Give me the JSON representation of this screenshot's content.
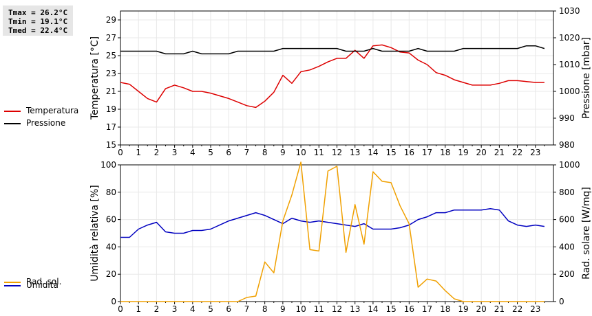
{
  "stats": {
    "tmax": "Tmax = 26.2°C",
    "tmin": "Tmin = 19.1°C",
    "tmed": "Tmed = 22.4°C"
  },
  "colors": {
    "temperatura": "#dd0000",
    "pressione": "#000000",
    "umidita": "#0000c0",
    "radsol": "#f0a000",
    "grid": "#e8e8e8"
  },
  "chart_data": [
    {
      "type": "line",
      "xlabel": "",
      "ylabel": "Temperatura [°C]",
      "y2label": "Pressione [mbar]",
      "xlim": [
        0,
        24
      ],
      "ylim": [
        15,
        30
      ],
      "y2lim": [
        980,
        1030
      ],
      "xticks": [
        "0",
        "1",
        "2",
        "3",
        "4",
        "5",
        "6",
        "7",
        "8",
        "9",
        "10",
        "11",
        "12",
        "13",
        "14",
        "15",
        "16",
        "17",
        "18",
        "19",
        "20",
        "21",
        "22",
        "23"
      ],
      "yticks": [
        "15",
        "17",
        "19",
        "21",
        "23",
        "25",
        "27",
        "29"
      ],
      "y2ticks": [
        "980",
        "990",
        "1000",
        "1010",
        "1020",
        "1030"
      ],
      "grid": true,
      "series": [
        {
          "name": "Temperatura",
          "axis": "left",
          "x": [
            0,
            0.5,
            1,
            1.5,
            2,
            2.5,
            3,
            3.5,
            4,
            4.5,
            5,
            5.5,
            6,
            6.5,
            7,
            7.5,
            8,
            8.5,
            9,
            9.5,
            10,
            10.5,
            11,
            11.5,
            12,
            12.5,
            13,
            13.5,
            14,
            14.5,
            15,
            15.5,
            16,
            16.5,
            17,
            17.5,
            18,
            18.5,
            19,
            19.5,
            20,
            20.5,
            21,
            21.5,
            22,
            22.5,
            23,
            23.5
          ],
          "values": [
            22,
            21.8,
            21,
            20.2,
            19.8,
            21.3,
            21.7,
            21.4,
            21,
            21,
            20.8,
            20.5,
            20.2,
            19.8,
            19.4,
            19.2,
            19.9,
            20.9,
            22.8,
            21.9,
            23.2,
            23.4,
            23.8,
            24.3,
            24.7,
            24.7,
            25.6,
            24.7,
            26.1,
            26.2,
            25.9,
            25.4,
            25.3,
            24.5,
            24,
            23.1,
            22.8,
            22.3,
            22,
            21.7,
            21.7,
            21.7,
            21.9,
            22.2,
            22.2,
            22.1,
            22,
            22
          ]
        },
        {
          "name": "Pressione",
          "axis": "right",
          "x": [
            0,
            0.5,
            1,
            1.5,
            2,
            2.5,
            3,
            3.5,
            4,
            4.5,
            5,
            5.5,
            6,
            6.5,
            7,
            7.5,
            8,
            8.5,
            9,
            9.5,
            10,
            10.5,
            11,
            11.5,
            12,
            12.5,
            13,
            13.5,
            14,
            14.5,
            15,
            15.5,
            16,
            16.5,
            17,
            17.5,
            18,
            18.5,
            19,
            19.5,
            20,
            20.5,
            21,
            21.5,
            22,
            22.5,
            23,
            23.5
          ],
          "values": [
            1015,
            1015,
            1015,
            1015,
            1015,
            1014,
            1014,
            1014,
            1015,
            1014,
            1014,
            1014,
            1014,
            1015,
            1015,
            1015,
            1015,
            1015,
            1016,
            1016,
            1016,
            1016,
            1016,
            1016,
            1016,
            1015,
            1015,
            1015,
            1016,
            1015,
            1015,
            1015,
            1015,
            1016,
            1015,
            1015,
            1015,
            1015,
            1016,
            1016,
            1016,
            1016,
            1016,
            1016,
            1016,
            1017,
            1017,
            1016
          ]
        }
      ]
    },
    {
      "type": "line",
      "xlabel": "",
      "ylabel": "Umidità relativa [%]",
      "y2label": "Rad. solare [W/mq]",
      "xlim": [
        0,
        24
      ],
      "ylim": [
        0,
        100
      ],
      "y2lim": [
        0,
        1000
      ],
      "xticks": [
        "0",
        "1",
        "2",
        "3",
        "4",
        "5",
        "6",
        "7",
        "8",
        "9",
        "10",
        "11",
        "12",
        "13",
        "14",
        "15",
        "16",
        "17",
        "18",
        "19",
        "20",
        "21",
        "22",
        "23"
      ],
      "yticks": [
        "0",
        "20",
        "40",
        "60",
        "80",
        "100"
      ],
      "y2ticks": [
        "0",
        "200",
        "400",
        "600",
        "800",
        "1000"
      ],
      "grid": true,
      "series": [
        {
          "name": "Umidità",
          "axis": "left",
          "x": [
            0,
            0.5,
            1,
            1.5,
            2,
            2.5,
            3,
            3.5,
            4,
            4.5,
            5,
            5.5,
            6,
            6.5,
            7,
            7.5,
            8,
            8.5,
            9,
            9.5,
            10,
            10.5,
            11,
            11.5,
            12,
            12.5,
            13,
            13.5,
            14,
            14.5,
            15,
            15.5,
            16,
            16.5,
            17,
            17.5,
            18,
            18.5,
            19,
            19.5,
            20,
            20.5,
            21,
            21.5,
            22,
            22.5,
            23,
            23.5
          ],
          "values": [
            47,
            47,
            53,
            56,
            58,
            51,
            50,
            50,
            52,
            52,
            53,
            56,
            59,
            61,
            63,
            65,
            63,
            60,
            57,
            61,
            59,
            58,
            59,
            58,
            57,
            56,
            55,
            57,
            53,
            53,
            53,
            54,
            56,
            60,
            62,
            65,
            65,
            67,
            67,
            67,
            67,
            68,
            67,
            59,
            56,
            55,
            56,
            55
          ]
        },
        {
          "name": "Rad. sol.",
          "axis": "right",
          "x": [
            0,
            0.5,
            1,
            1.5,
            2,
            2.5,
            3,
            3.5,
            4,
            4.5,
            5,
            5.5,
            6,
            6.5,
            7,
            7.5,
            8,
            8.5,
            9,
            9.5,
            10,
            10.5,
            11,
            11.5,
            12,
            12.5,
            13,
            13.5,
            14,
            14.5,
            15,
            15.5,
            16,
            16.5,
            17,
            17.5,
            18,
            18.5,
            19,
            19.5,
            20,
            20.5,
            21,
            21.5,
            22,
            22.5,
            23,
            23.5
          ],
          "values": [
            0,
            0,
            0,
            0,
            0,
            0,
            0,
            0,
            0,
            0,
            0,
            0,
            0,
            0,
            30,
            40,
            290,
            210,
            590,
            780,
            1020,
            380,
            370,
            955,
            990,
            360,
            710,
            420,
            950,
            880,
            870,
            700,
            570,
            105,
            165,
            150,
            80,
            20,
            0,
            0,
            0,
            0,
            0,
            0,
            0,
            0,
            0,
            0
          ]
        }
      ]
    }
  ]
}
